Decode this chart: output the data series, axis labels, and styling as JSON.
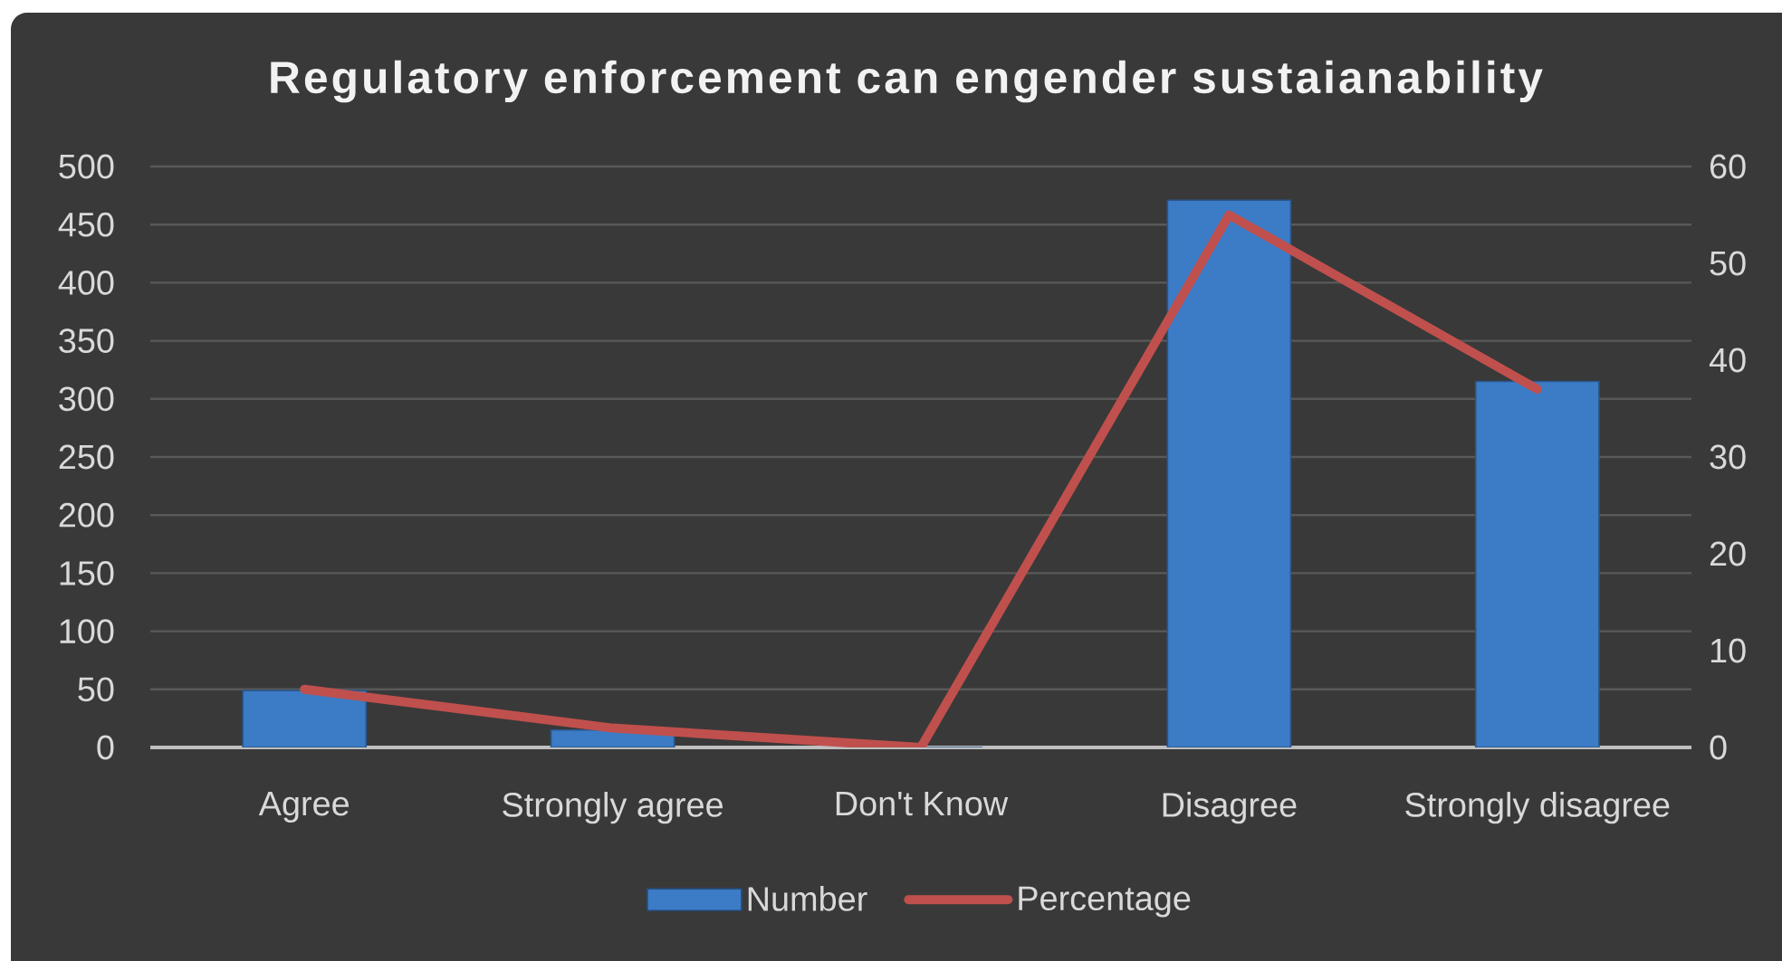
{
  "chart_data": {
    "type": "bar",
    "title": "Regulatory enforcement can engender sustaianability",
    "categories": [
      "Agree",
      "Strongly agree",
      "Don't Know",
      "Disagree",
      "Strongly disagree"
    ],
    "series": [
      {
        "name": "Number",
        "color": "#3c7bc6",
        "values": [
          49,
          15,
          0,
          471,
          315
        ]
      },
      {
        "name": "Percentage",
        "type": "line",
        "axis": "y2",
        "color": "#c0504d",
        "marker": "none",
        "line_style": "solid",
        "values": [
          6,
          2,
          0,
          55,
          37
        ]
      }
    ],
    "ylim": [
      0,
      500
    ],
    "yticks": [
      0,
      50,
      100,
      150,
      200,
      250,
      300,
      350,
      400,
      450,
      500
    ],
    "y2lim": [
      0,
      60
    ],
    "y2ticks": [
      0,
      10,
      20,
      30,
      40,
      50,
      60
    ],
    "grid": "y",
    "legend": "bottom"
  }
}
